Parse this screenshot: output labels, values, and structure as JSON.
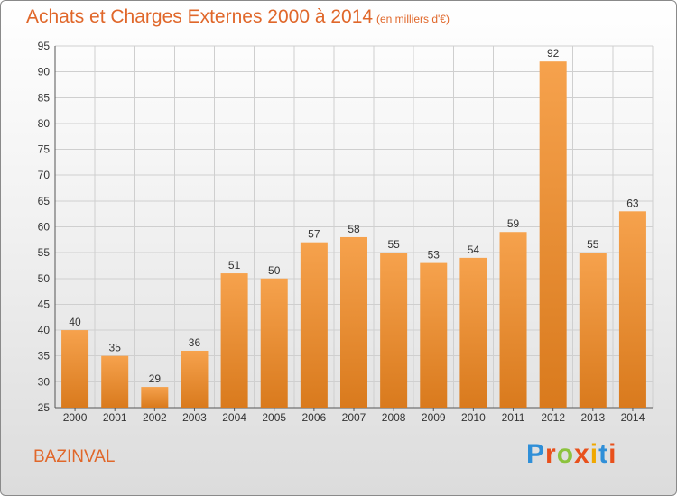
{
  "header": {
    "title": "Achats et Charges Externes 2000 à 2014",
    "subtitle": "(en milliers d'€)"
  },
  "footer": {
    "town": "BAZINVAL",
    "logo": {
      "text": "Proxiti",
      "letter_colors": [
        "#2f8fd8",
        "#e8501c",
        "#8cc33d",
        "#e8501c",
        "#f0a800",
        "#2f8fd8",
        "#e8501c"
      ]
    }
  },
  "colors": {
    "bar_top": "#f6a24d",
    "bar_bottom": "#d97a1d",
    "accent": "#e0672a",
    "grid": "#cfcfcf",
    "text": "#333333"
  },
  "chart_data": {
    "type": "bar",
    "title": "Achats et Charges Externes 2000 à 2014",
    "subtitle": "(en milliers d'€)",
    "categories": [
      "2000",
      "2001",
      "2002",
      "2003",
      "2004",
      "2005",
      "2006",
      "2007",
      "2008",
      "2009",
      "2010",
      "2011",
      "2012",
      "2013",
      "2014"
    ],
    "values": [
      40,
      35,
      29,
      36,
      51,
      50,
      57,
      58,
      55,
      53,
      54,
      59,
      92,
      55,
      63
    ],
    "ylim": [
      25,
      95
    ],
    "yticks": [
      25,
      30,
      35,
      40,
      45,
      50,
      55,
      60,
      65,
      70,
      75,
      80,
      85,
      90,
      95
    ],
    "grid": true,
    "data_labels": true
  }
}
